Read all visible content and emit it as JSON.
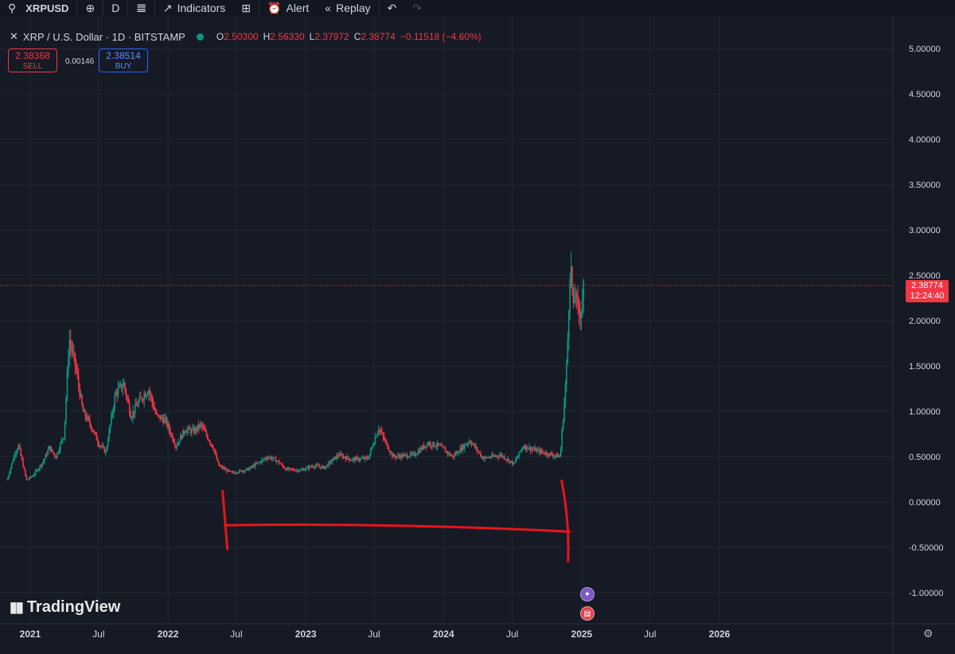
{
  "toolbar": {
    "symbol": "XRPUSD",
    "interval": "D",
    "indicators_label": "Indicators",
    "alert_label": "Alert",
    "replay_label": "Replay"
  },
  "legend": {
    "title": "XRP / U.S. Dollar · 1D · BITSTAMP",
    "open_label": "O",
    "open": "2.50300",
    "high_label": "H",
    "high": "2.56330",
    "low_label": "L",
    "low": "2.37972",
    "close_label": "C",
    "close": "2.38774",
    "change": "−0.11518 (−4.60%)"
  },
  "trade": {
    "sell_price": "2.38368",
    "sell_label": "SELL",
    "spread": "0.00146",
    "buy_price": "2.38514",
    "buy_label": "BUY"
  },
  "price_tag": {
    "price": "2.38774",
    "countdown": "12:24:40"
  },
  "branding": {
    "name": "TradingView"
  },
  "colors": {
    "background": "#161a25",
    "up": "#089981",
    "down": "#f23645",
    "grid": "#232733",
    "annotation": "#e8141b"
  },
  "icons": [
    "search-icon",
    "plus-circle-icon",
    "candles-icon",
    "indicators-icon",
    "layout-icon",
    "alert-icon",
    "replay-icon",
    "undo-icon",
    "redo-icon",
    "star-event-icon",
    "us-flag-event-icon",
    "gear-icon"
  ],
  "chart_data": {
    "type": "candlestick",
    "symbol": "XRPUSD",
    "timeframe": "1D",
    "exchange": "BITSTAMP",
    "ylim": [
      -1.1,
      5.2
    ],
    "y_ticks": [
      "5.00000",
      "4.50000",
      "4.00000",
      "3.50000",
      "3.00000",
      "2.50000",
      "2.00000",
      "1.50000",
      "1.00000",
      "0.50000",
      "0.00000",
      "-0.50000",
      "-1.00000"
    ],
    "y_tick_values": [
      5,
      4.5,
      4,
      3.5,
      3,
      2.5,
      2,
      1.5,
      1,
      0.5,
      0,
      -0.5,
      -1
    ],
    "x_range": [
      "2020-11-01",
      "2026-12-31"
    ],
    "x_ticks": [
      {
        "label": "2021",
        "date": "2021-01-01"
      },
      {
        "label": "Jul",
        "date": "2021-07-01"
      },
      {
        "label": "2022",
        "date": "2022-01-01"
      },
      {
        "label": "Jul",
        "date": "2022-07-01"
      },
      {
        "label": "2023",
        "date": "2023-01-01"
      },
      {
        "label": "Jul",
        "date": "2023-07-01"
      },
      {
        "label": "2024",
        "date": "2024-01-01"
      },
      {
        "label": "Jul",
        "date": "2024-07-01"
      },
      {
        "label": "2025",
        "date": "2025-01-01"
      },
      {
        "label": "Jul",
        "date": "2025-07-01"
      },
      {
        "label": "2026",
        "date": "2026-01-01"
      }
    ],
    "price_path": [
      {
        "date": "2020-11-01",
        "price": 0.25
      },
      {
        "date": "2020-11-22",
        "price": 0.55
      },
      {
        "date": "2020-12-01",
        "price": 0.62
      },
      {
        "date": "2020-12-22",
        "price": 0.24
      },
      {
        "date": "2021-01-10",
        "price": 0.3
      },
      {
        "date": "2021-02-05",
        "price": 0.45
      },
      {
        "date": "2021-02-20",
        "price": 0.6
      },
      {
        "date": "2021-03-10",
        "price": 0.5
      },
      {
        "date": "2021-04-01",
        "price": 0.75
      },
      {
        "date": "2021-04-14",
        "price": 1.8
      },
      {
        "date": "2021-05-01",
        "price": 1.5
      },
      {
        "date": "2021-05-20",
        "price": 1.0
      },
      {
        "date": "2021-06-10",
        "price": 0.85
      },
      {
        "date": "2021-07-01",
        "price": 0.65
      },
      {
        "date": "2021-07-20",
        "price": 0.55
      },
      {
        "date": "2021-08-15",
        "price": 1.2
      },
      {
        "date": "2021-09-06",
        "price": 1.3
      },
      {
        "date": "2021-09-25",
        "price": 0.95
      },
      {
        "date": "2021-10-15",
        "price": 1.1
      },
      {
        "date": "2021-11-10",
        "price": 1.25
      },
      {
        "date": "2021-12-01",
        "price": 0.95
      },
      {
        "date": "2021-12-25",
        "price": 0.9
      },
      {
        "date": "2022-01-22",
        "price": 0.62
      },
      {
        "date": "2022-02-15",
        "price": 0.8
      },
      {
        "date": "2022-03-10",
        "price": 0.78
      },
      {
        "date": "2022-03-29",
        "price": 0.85
      },
      {
        "date": "2022-05-01",
        "price": 0.6
      },
      {
        "date": "2022-05-15",
        "price": 0.4
      },
      {
        "date": "2022-06-18",
        "price": 0.32
      },
      {
        "date": "2022-08-01",
        "price": 0.36
      },
      {
        "date": "2022-09-23",
        "price": 0.5
      },
      {
        "date": "2022-10-15",
        "price": 0.46
      },
      {
        "date": "2022-11-10",
        "price": 0.36
      },
      {
        "date": "2022-12-20",
        "price": 0.35
      },
      {
        "date": "2023-01-20",
        "price": 0.4
      },
      {
        "date": "2023-02-20",
        "price": 0.38
      },
      {
        "date": "2023-03-28",
        "price": 0.52
      },
      {
        "date": "2023-05-01",
        "price": 0.47
      },
      {
        "date": "2023-06-15",
        "price": 0.48
      },
      {
        "date": "2023-07-13",
        "price": 0.82
      },
      {
        "date": "2023-08-01",
        "price": 0.65
      },
      {
        "date": "2023-08-20",
        "price": 0.5
      },
      {
        "date": "2023-10-15",
        "price": 0.52
      },
      {
        "date": "2023-11-20",
        "price": 0.65
      },
      {
        "date": "2023-12-20",
        "price": 0.62
      },
      {
        "date": "2024-01-25",
        "price": 0.5
      },
      {
        "date": "2024-03-11",
        "price": 0.68
      },
      {
        "date": "2024-04-15",
        "price": 0.48
      },
      {
        "date": "2024-06-01",
        "price": 0.52
      },
      {
        "date": "2024-07-05",
        "price": 0.42
      },
      {
        "date": "2024-07-30",
        "price": 0.62
      },
      {
        "date": "2024-09-01",
        "price": 0.57
      },
      {
        "date": "2024-10-15",
        "price": 0.52
      },
      {
        "date": "2024-11-05",
        "price": 0.5
      },
      {
        "date": "2024-11-16",
        "price": 1.1
      },
      {
        "date": "2024-11-23",
        "price": 1.55
      },
      {
        "date": "2024-12-02",
        "price": 2.7
      },
      {
        "date": "2024-12-10",
        "price": 2.1
      },
      {
        "date": "2024-12-15",
        "price": 2.4
      },
      {
        "date": "2024-12-20",
        "price": 2.1
      },
      {
        "date": "2024-12-30",
        "price": 2.1
      },
      {
        "date": "2025-01-06",
        "price": 2.38
      }
    ],
    "current_price": 2.38774,
    "annotation": {
      "kind": "bracket",
      "start": "2022-06-01",
      "end": "2024-11-30",
      "level": -0.3
    }
  }
}
